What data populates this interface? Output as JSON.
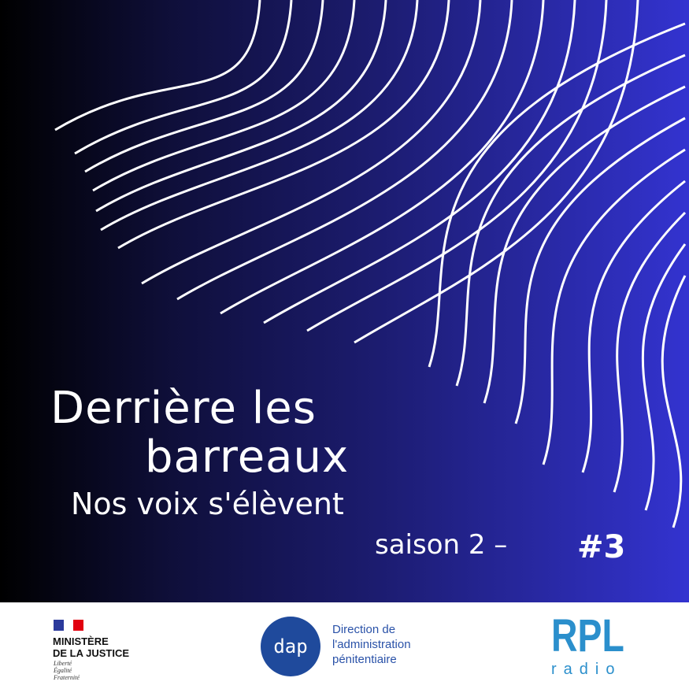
{
  "title_line1": "Derrière les",
  "title_line2": "barreaux",
  "subtitle": "Nos voix s'élèvent",
  "season": "saison 2 –",
  "episode": "#3",
  "colors": {
    "gradient_start": "#000000",
    "gradient_end": "#3333d0",
    "dap_blue": "#1f4a9c",
    "rpl_blue": "#2b8fcc"
  },
  "footer": {
    "ministry": {
      "line1": "MINISTÈRE",
      "line2": "DE LA JUSTICE",
      "motto": [
        "Liberté",
        "Égalité",
        "Fraternité"
      ]
    },
    "dap": {
      "logo": "dap",
      "line1": "Direction de",
      "line2": "l'administration",
      "line3": "pénitentiaire"
    },
    "rpl": {
      "logo": "RPL",
      "sub": "radio"
    }
  }
}
